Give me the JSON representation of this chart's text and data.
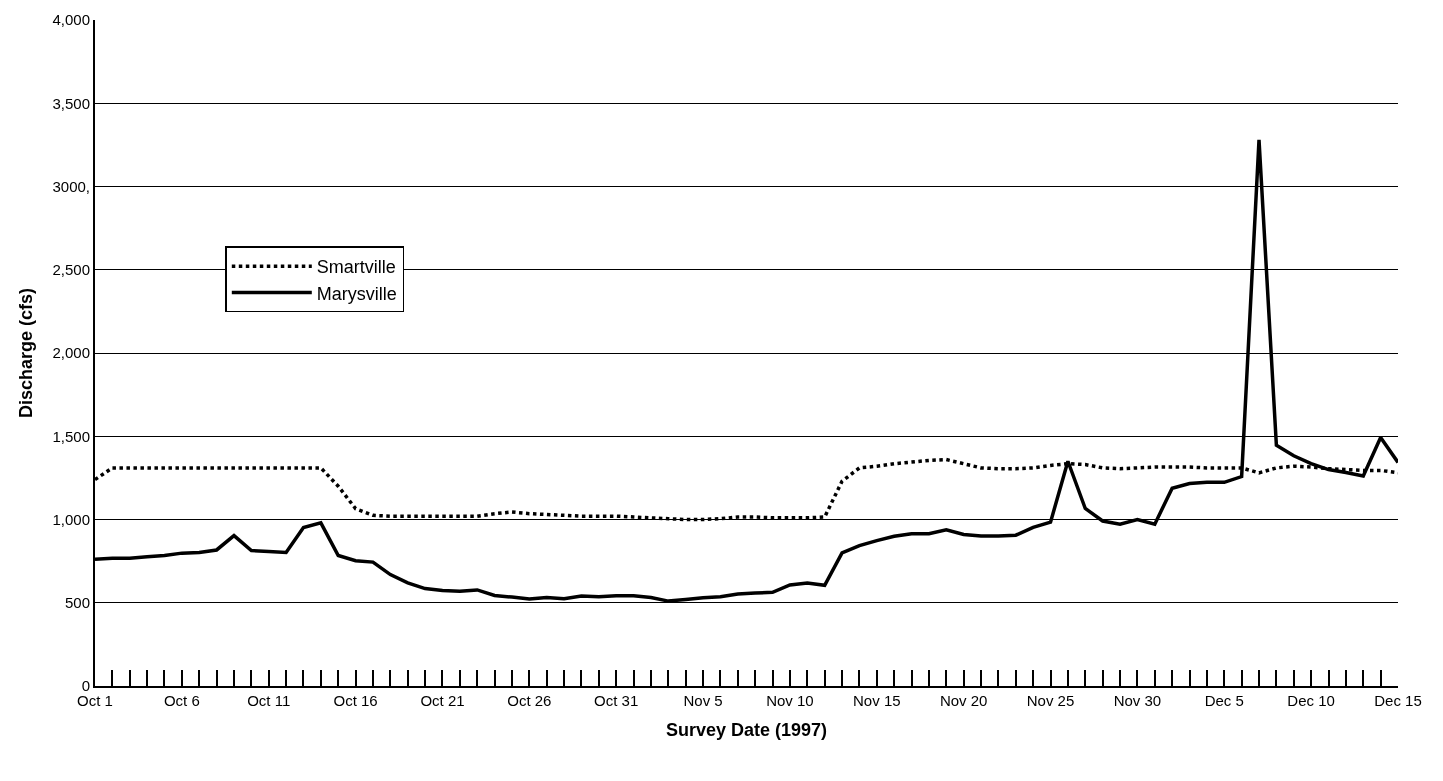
{
  "chart_data": {
    "type": "line",
    "xlabel": "Survey Date (1997)",
    "ylabel": "Discharge (cfs)",
    "x": [
      "1997-10-01",
      "1997-10-02",
      "1997-10-03",
      "1997-10-04",
      "1997-10-05",
      "1997-10-06",
      "1997-10-07",
      "1997-10-08",
      "1997-10-09",
      "1997-10-10",
      "1997-10-11",
      "1997-10-12",
      "1997-10-13",
      "1997-10-14",
      "1997-10-15",
      "1997-10-16",
      "1997-10-17",
      "1997-10-18",
      "1997-10-19",
      "1997-10-20",
      "1997-10-21",
      "1997-10-22",
      "1997-10-23",
      "1997-10-24",
      "1997-10-25",
      "1997-10-26",
      "1997-10-27",
      "1997-10-28",
      "1997-10-29",
      "1997-10-30",
      "1997-10-31",
      "1997-11-01",
      "1997-11-02",
      "1997-11-03",
      "1997-11-04",
      "1997-11-05",
      "1997-11-06",
      "1997-11-07",
      "1997-11-08",
      "1997-11-09",
      "1997-11-10",
      "1997-11-11",
      "1997-11-12",
      "1997-11-13",
      "1997-11-14",
      "1997-11-15",
      "1997-11-16",
      "1997-11-17",
      "1997-11-18",
      "1997-11-19",
      "1997-11-20",
      "1997-11-21",
      "1997-11-22",
      "1997-11-23",
      "1997-11-24",
      "1997-11-25",
      "1997-11-26",
      "1997-11-27",
      "1997-11-28",
      "1997-11-29",
      "1997-11-30",
      "1997-12-01",
      "1997-12-02",
      "1997-12-03",
      "1997-12-04",
      "1997-12-05",
      "1997-12-06",
      "1997-12-07",
      "1997-12-08",
      "1997-12-09",
      "1997-12-10",
      "1997-12-11",
      "1997-12-12",
      "1997-12-13",
      "1997-12-14",
      "1997-12-15"
    ],
    "series": [
      {
        "name": "Smartville",
        "color": "#000000",
        "line_style": "dotted",
        "values": [
          1240,
          1310,
          1310,
          1310,
          1310,
          1310,
          1310,
          1310,
          1310,
          1310,
          1310,
          1310,
          1310,
          1310,
          1200,
          1065,
          1025,
          1020,
          1020,
          1020,
          1020,
          1020,
          1020,
          1035,
          1045,
          1035,
          1030,
          1025,
          1020,
          1020,
          1020,
          1015,
          1010,
          1005,
          1000,
          1000,
          1005,
          1015,
          1015,
          1010,
          1010,
          1010,
          1015,
          1230,
          1310,
          1320,
          1335,
          1345,
          1355,
          1360,
          1335,
          1310,
          1305,
          1305,
          1310,
          1325,
          1335,
          1330,
          1310,
          1305,
          1310,
          1315,
          1315,
          1315,
          1310,
          1310,
          1310,
          1280,
          1310,
          1320,
          1315,
          1305,
          1300,
          1295,
          1295,
          1280
        ]
      },
      {
        "name": "Marysville",
        "color": "#000000",
        "line_style": "solid",
        "values": [
          762,
          768,
          768,
          776,
          784,
          798,
          802,
          817,
          903,
          813,
          808,
          802,
          952,
          980,
          784,
          752,
          744,
          669,
          619,
          585,
          573,
          569,
          577,
          544,
          534,
          522,
          532,
          524,
          540,
          536,
          542,
          542,
          532,
          510,
          520,
          530,
          536,
          552,
          558,
          563,
          607,
          619,
          605,
          800,
          843,
          873,
          899,
          915,
          915,
          938,
          910,
          901,
          901,
          906,
          953,
          984,
          1350,
          1066,
          991,
          972,
          1000,
          972,
          1188,
          1216,
          1223,
          1223,
          1258,
          3280,
          1446,
          1383,
          1336,
          1300,
          1282,
          1261,
          1493,
          1343
        ]
      }
    ],
    "xlim": [
      "1997-10-01",
      "1997-12-15"
    ],
    "xticks": [
      {
        "value": "1997-10-01",
        "label": "Oct 1"
      },
      {
        "value": "1997-10-02",
        "label": null
      },
      {
        "value": "1997-10-03",
        "label": null
      },
      {
        "value": "1997-10-04",
        "label": null
      },
      {
        "value": "1997-10-05",
        "label": null
      },
      {
        "value": "1997-10-06",
        "label": "Oct 6"
      },
      {
        "value": "1997-10-07",
        "label": null
      },
      {
        "value": "1997-10-08",
        "label": null
      },
      {
        "value": "1997-10-09",
        "label": null
      },
      {
        "value": "1997-10-10",
        "label": null
      },
      {
        "value": "1997-10-11",
        "label": "Oct 11"
      },
      {
        "value": "1997-10-12",
        "label": null
      },
      {
        "value": "1997-10-13",
        "label": null
      },
      {
        "value": "1997-10-14",
        "label": null
      },
      {
        "value": "1997-10-15",
        "label": null
      },
      {
        "value": "1997-10-16",
        "label": "Oct 16"
      },
      {
        "value": "1997-10-17",
        "label": null
      },
      {
        "value": "1997-10-18",
        "label": null
      },
      {
        "value": "1997-10-19",
        "label": null
      },
      {
        "value": "1997-10-20",
        "label": null
      },
      {
        "value": "1997-10-21",
        "label": "Oct 21"
      },
      {
        "value": "1997-10-22",
        "label": null
      },
      {
        "value": "1997-10-23",
        "label": null
      },
      {
        "value": "1997-10-24",
        "label": null
      },
      {
        "value": "1997-10-25",
        "label": null
      },
      {
        "value": "1997-10-26",
        "label": "Oct 26"
      },
      {
        "value": "1997-10-27",
        "label": null
      },
      {
        "value": "1997-10-28",
        "label": null
      },
      {
        "value": "1997-10-29",
        "label": null
      },
      {
        "value": "1997-10-30",
        "label": null
      },
      {
        "value": "1997-10-31",
        "label": "Oct 31"
      },
      {
        "value": "1997-11-01",
        "label": null
      },
      {
        "value": "1997-11-02",
        "label": null
      },
      {
        "value": "1997-11-03",
        "label": null
      },
      {
        "value": "1997-11-04",
        "label": null
      },
      {
        "value": "1997-11-05",
        "label": "Nov 5"
      },
      {
        "value": "1997-11-06",
        "label": null
      },
      {
        "value": "1997-11-07",
        "label": null
      },
      {
        "value": "1997-11-08",
        "label": null
      },
      {
        "value": "1997-11-09",
        "label": null
      },
      {
        "value": "1997-11-10",
        "label": "Nov 10"
      },
      {
        "value": "1997-11-11",
        "label": null
      },
      {
        "value": "1997-11-12",
        "label": null
      },
      {
        "value": "1997-11-13",
        "label": null
      },
      {
        "value": "1997-11-14",
        "label": null
      },
      {
        "value": "1997-11-15",
        "label": "Nov 15"
      },
      {
        "value": "1997-11-16",
        "label": null
      },
      {
        "value": "1997-11-17",
        "label": null
      },
      {
        "value": "1997-11-18",
        "label": null
      },
      {
        "value": "1997-11-19",
        "label": null
      },
      {
        "value": "1997-11-20",
        "label": "Nov 20"
      },
      {
        "value": "1997-11-21",
        "label": null
      },
      {
        "value": "1997-11-22",
        "label": null
      },
      {
        "value": "1997-11-23",
        "label": null
      },
      {
        "value": "1997-11-24",
        "label": null
      },
      {
        "value": "1997-11-25",
        "label": "Nov 25"
      },
      {
        "value": "1997-11-26",
        "label": null
      },
      {
        "value": "1997-11-27",
        "label": null
      },
      {
        "value": "1997-11-28",
        "label": null
      },
      {
        "value": "1997-11-29",
        "label": null
      },
      {
        "value": "1997-11-30",
        "label": "Nov 30"
      },
      {
        "value": "1997-12-01",
        "label": null
      },
      {
        "value": "1997-12-02",
        "label": null
      },
      {
        "value": "1997-12-03",
        "label": null
      },
      {
        "value": "1997-12-04",
        "label": null
      },
      {
        "value": "1997-12-05",
        "label": "Dec 5"
      },
      {
        "value": "1997-12-06",
        "label": null
      },
      {
        "value": "1997-12-07",
        "label": null
      },
      {
        "value": "1997-12-08",
        "label": null
      },
      {
        "value": "1997-12-09",
        "label": null
      },
      {
        "value": "1997-12-10",
        "label": "Dec 10"
      },
      {
        "value": "1997-12-11",
        "label": null
      },
      {
        "value": "1997-12-12",
        "label": null
      },
      {
        "value": "1997-12-13",
        "label": null
      },
      {
        "value": "1997-12-14",
        "label": null
      },
      {
        "value": "1997-12-15",
        "label": "Dec 15"
      }
    ],
    "ylim": [
      0,
      4000
    ],
    "yticks": [
      0,
      500,
      {
        "value": 1000,
        "label": "1,000"
      },
      {
        "value": 1500,
        "label": "1,500"
      },
      {
        "value": 2000,
        "label": "2,000"
      },
      {
        "value": 2500,
        "label": "2,500"
      },
      {
        "value": 3000,
        "label": "3000,"
      },
      {
        "value": 3500,
        "label": "3,500"
      },
      {
        "value": 4000,
        "label": "4,000"
      }
    ],
    "grid": "y",
    "legend": "left",
    "marker": "none"
  }
}
